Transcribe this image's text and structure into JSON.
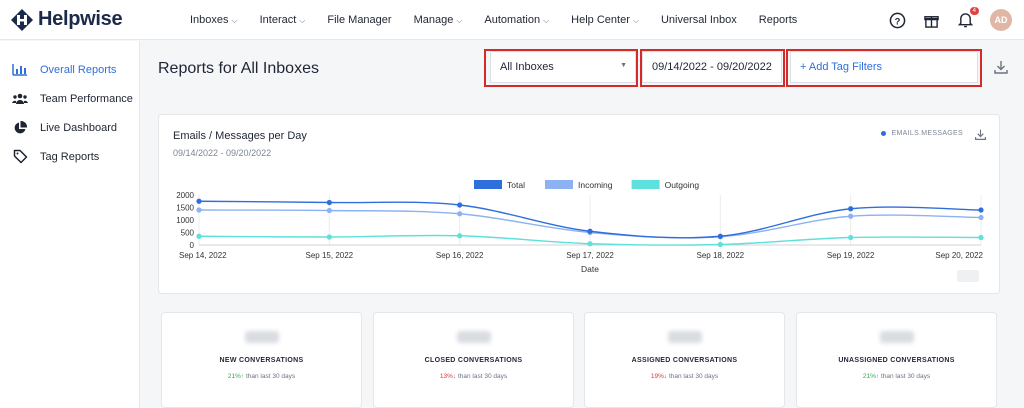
{
  "brand": {
    "name": "Helpwise"
  },
  "nav": {
    "items": [
      {
        "label": "Inboxes",
        "dropdown": true
      },
      {
        "label": "Interact",
        "dropdown": true
      },
      {
        "label": "File Manager",
        "dropdown": false
      },
      {
        "label": "Manage",
        "dropdown": true
      },
      {
        "label": "Automation",
        "dropdown": true
      },
      {
        "label": "Help Center",
        "dropdown": true
      },
      {
        "label": "Universal Inbox",
        "dropdown": false
      },
      {
        "label": "Reports",
        "dropdown": false
      }
    ]
  },
  "top_icons": {
    "help": "question-icon",
    "gift": "gift-icon",
    "bell": "bell-icon",
    "bell_badge": "4",
    "avatar_initials": "AD"
  },
  "sidebar": {
    "items": [
      {
        "label": "Overall Reports",
        "icon": "bar-chart-icon",
        "active": true
      },
      {
        "label": "Team Performance",
        "icon": "users-icon",
        "active": false
      },
      {
        "label": "Live Dashboard",
        "icon": "pie-chart-icon",
        "active": false
      },
      {
        "label": "Tag Reports",
        "icon": "tag-icon",
        "active": false
      }
    ]
  },
  "page": {
    "title": "Reports for All Inboxes"
  },
  "filters": {
    "inbox_select": "All Inboxes",
    "date_range": "09/14/2022 - 09/20/2022",
    "tag_filter": "+ Add Tag Filters"
  },
  "chart_card": {
    "title": "Emails / Messages per Day",
    "subtitle": "09/14/2022 - 09/20/2022",
    "tag": "EMAILS.MESSAGES"
  },
  "chart_data": {
    "type": "line",
    "x": [
      "Sep 14, 2022",
      "Sep 15, 2022",
      "Sep 16, 2022",
      "Sep 17, 2022",
      "Sep 18, 2022",
      "Sep 19, 2022",
      "Sep 20, 2022"
    ],
    "series": [
      {
        "name": "Total",
        "color": "#2f6fdc",
        "values": [
          1750,
          1700,
          1600,
          550,
          350,
          1450,
          1400
        ]
      },
      {
        "name": "Incoming",
        "color": "#8cb2f2",
        "values": [
          1400,
          1380,
          1250,
          500,
          330,
          1150,
          1100
        ]
      },
      {
        "name": "Outgoing",
        "color": "#5ee0dc",
        "values": [
          350,
          320,
          370,
          50,
          20,
          300,
          300
        ]
      }
    ],
    "xlabel": "Date",
    "ylabel": "",
    "ylim": [
      0,
      2000
    ],
    "yticks": [
      "0",
      "500",
      "1000",
      "1500",
      "2000"
    ],
    "legend": "top-center",
    "grid": "vertical"
  },
  "stats": [
    {
      "label": "NEW CONVERSATIONS",
      "change": "21%",
      "dir": "up",
      "note": "than last 30 days"
    },
    {
      "label": "CLOSED CONVERSATIONS",
      "change": "13%",
      "dir": "down",
      "note": "than last 30 days"
    },
    {
      "label": "ASSIGNED CONVERSATIONS",
      "change": "19%",
      "dir": "down",
      "note": "than last 30 days"
    },
    {
      "label": "UNASSIGNED CONVERSATIONS",
      "change": "21%",
      "dir": "up",
      "note": "than last 30 days"
    }
  ],
  "colors": {
    "accent": "#2f6fdc",
    "highlight_box": "#d62929"
  }
}
